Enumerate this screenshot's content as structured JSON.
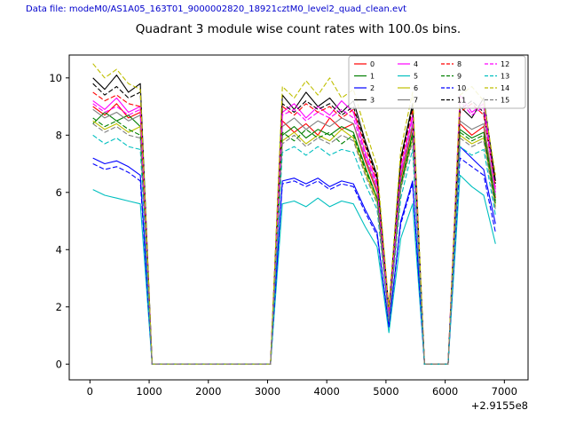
{
  "header": {
    "data_file_label": "Data file: modeM0/AS1A05_163T01_9000002820_18921cztM0_level2_quad_clean.evt",
    "color": "#0000cc"
  },
  "chart_data": {
    "type": "line",
    "title": "Quadrant 3 module wise count rates with 100.0s bins.",
    "xlabel": "",
    "ylabel": "",
    "x_offset_text": "+2.9155e8",
    "xlim": [
      -350,
      7400
    ],
    "ylim": [
      -0.55,
      10.8
    ],
    "xticks": [
      0,
      1000,
      2000,
      3000,
      4000,
      5000,
      6000,
      7000
    ],
    "yticks": [
      0,
      2,
      4,
      6,
      8,
      10
    ],
    "grid": false,
    "legend_position": "upper right",
    "legend_columns": 4,
    "x": [
      50,
      250,
      450,
      650,
      850,
      1050,
      1250,
      1450,
      1650,
      1850,
      2050,
      2250,
      2450,
      2650,
      2850,
      3050,
      3250,
      3450,
      3650,
      3850,
      4050,
      4250,
      4450,
      4650,
      4850,
      5050,
      5250,
      5450,
      5650,
      5850,
      6050,
      6250,
      6450,
      6650,
      6850
    ],
    "series": [
      {
        "name": "0",
        "color": "#ff0000",
        "dashed": false,
        "values": [
          9.0,
          8.7,
          9.1,
          8.6,
          8.8,
          0,
          0,
          0,
          0,
          0,
          0,
          0,
          0,
          0,
          0,
          0,
          8.5,
          8.1,
          8.4,
          8.0,
          8.6,
          8.2,
          8.4,
          7.1,
          6.0,
          1.7,
          6.5,
          8.3,
          0,
          0,
          0,
          8.4,
          8.0,
          8.3,
          5.8
        ]
      },
      {
        "name": "1",
        "color": "#007f00",
        "dashed": false,
        "values": [
          8.4,
          8.8,
          8.5,
          8.7,
          8.3,
          0,
          0,
          0,
          0,
          0,
          0,
          0,
          0,
          0,
          0,
          0,
          8.0,
          8.3,
          7.9,
          8.2,
          8.0,
          8.3,
          8.1,
          6.9,
          5.8,
          1.6,
          6.3,
          8.1,
          0,
          0,
          0,
          8.2,
          7.9,
          8.1,
          5.7
        ]
      },
      {
        "name": "2",
        "color": "#0000ff",
        "dashed": false,
        "values": [
          7.2,
          7.0,
          7.1,
          6.9,
          6.6,
          0,
          0,
          0,
          0,
          0,
          0,
          0,
          0,
          0,
          0,
          0,
          6.4,
          6.5,
          6.3,
          6.5,
          6.2,
          6.4,
          6.3,
          5.4,
          4.6,
          1.3,
          5.0,
          6.4,
          0,
          0,
          0,
          7.6,
          7.2,
          6.8,
          4.9
        ]
      },
      {
        "name": "3",
        "color": "#000000",
        "dashed": false,
        "values": [
          10.0,
          9.6,
          10.1,
          9.5,
          9.8,
          0,
          0,
          0,
          0,
          0,
          0,
          0,
          0,
          0,
          0,
          0,
          9.4,
          8.9,
          9.5,
          9.0,
          9.3,
          8.8,
          9.2,
          7.8,
          6.6,
          1.9,
          7.2,
          9.1,
          0,
          0,
          0,
          9.0,
          8.6,
          9.3,
          6.4
        ]
      },
      {
        "name": "4",
        "color": "#ff00ff",
        "dashed": false,
        "values": [
          9.2,
          8.9,
          9.3,
          8.8,
          9.0,
          0,
          0,
          0,
          0,
          0,
          0,
          0,
          0,
          0,
          0,
          0,
          8.8,
          9.1,
          8.6,
          9.0,
          8.7,
          9.2,
          8.8,
          7.4,
          6.3,
          1.8,
          6.8,
          8.7,
          0,
          0,
          0,
          9.4,
          8.8,
          9.1,
          6.1
        ]
      },
      {
        "name": "5",
        "color": "#00bfbf",
        "dashed": false,
        "values": [
          6.1,
          5.9,
          5.8,
          5.7,
          5.6,
          0,
          0,
          0,
          0,
          0,
          0,
          0,
          0,
          0,
          0,
          0,
          5.6,
          5.7,
          5.5,
          5.8,
          5.5,
          5.7,
          5.6,
          4.8,
          4.1,
          1.1,
          4.4,
          5.6,
          0,
          0,
          0,
          6.6,
          6.2,
          5.9,
          4.2
        ]
      },
      {
        "name": "6",
        "color": "#bfbf00",
        "dashed": false,
        "values": [
          8.5,
          8.2,
          8.4,
          8.1,
          8.3,
          0,
          0,
          0,
          0,
          0,
          0,
          0,
          0,
          0,
          0,
          0,
          7.8,
          8.1,
          7.7,
          8.0,
          7.8,
          8.2,
          7.9,
          6.7,
          5.7,
          1.6,
          6.2,
          7.9,
          0,
          0,
          0,
          8.0,
          7.7,
          7.9,
          5.5
        ]
      },
      {
        "name": "7",
        "color": "#7f7f7f",
        "dashed": false,
        "values": [
          8.9,
          8.6,
          8.8,
          8.5,
          8.7,
          0,
          0,
          0,
          0,
          0,
          0,
          0,
          0,
          0,
          0,
          0,
          8.3,
          8.6,
          8.2,
          8.5,
          8.3,
          8.6,
          8.4,
          7.2,
          6.1,
          1.7,
          6.6,
          8.4,
          0,
          0,
          0,
          8.5,
          8.2,
          8.4,
          5.9
        ]
      },
      {
        "name": "8",
        "color": "#ff0000",
        "dashed": true,
        "values": [
          9.5,
          9.2,
          9.4,
          9.1,
          9.0,
          0,
          0,
          0,
          0,
          0,
          0,
          0,
          0,
          0,
          0,
          0,
          9.0,
          8.7,
          9.1,
          8.8,
          9.0,
          8.6,
          8.9,
          7.6,
          6.4,
          1.8,
          7.0,
          8.9,
          0,
          0,
          0,
          8.8,
          9.1,
          8.7,
          6.2
        ]
      },
      {
        "name": "9",
        "color": "#007f00",
        "dashed": true,
        "values": [
          8.6,
          8.3,
          8.5,
          8.2,
          8.0,
          0,
          0,
          0,
          0,
          0,
          0,
          0,
          0,
          0,
          0,
          0,
          8.1,
          7.8,
          8.2,
          7.9,
          8.1,
          7.7,
          8.0,
          6.8,
          5.8,
          1.6,
          6.2,
          8.0,
          0,
          0,
          0,
          8.1,
          7.8,
          8.0,
          5.6
        ]
      },
      {
        "name": "10",
        "color": "#0000ff",
        "dashed": true,
        "values": [
          7.0,
          6.8,
          6.9,
          6.7,
          6.4,
          0,
          0,
          0,
          0,
          0,
          0,
          0,
          0,
          0,
          0,
          0,
          6.3,
          6.4,
          6.2,
          6.4,
          6.1,
          6.3,
          6.2,
          5.3,
          4.5,
          1.3,
          4.9,
          6.3,
          0,
          0,
          0,
          7.2,
          6.9,
          6.6,
          4.6
        ]
      },
      {
        "name": "11",
        "color": "#000000",
        "dashed": true,
        "values": [
          9.8,
          9.4,
          9.7,
          9.3,
          9.5,
          0,
          0,
          0,
          0,
          0,
          0,
          0,
          0,
          0,
          0,
          0,
          9.1,
          8.8,
          9.2,
          8.9,
          9.1,
          8.7,
          9.0,
          7.7,
          6.5,
          1.9,
          7.1,
          9.0,
          0,
          0,
          0,
          8.9,
          9.2,
          8.8,
          6.3
        ]
      },
      {
        "name": "12",
        "color": "#ff00ff",
        "dashed": true,
        "values": [
          9.1,
          8.8,
          9.0,
          8.7,
          8.9,
          0,
          0,
          0,
          0,
          0,
          0,
          0,
          0,
          0,
          0,
          0,
          8.7,
          8.9,
          8.5,
          8.8,
          8.6,
          8.9,
          8.6,
          7.3,
          6.2,
          1.7,
          6.7,
          8.6,
          0,
          0,
          0,
          9.2,
          8.7,
          9.0,
          6.0
        ]
      },
      {
        "name": "13",
        "color": "#00bfbf",
        "dashed": true,
        "values": [
          8.0,
          7.7,
          7.9,
          7.6,
          7.5,
          0,
          0,
          0,
          0,
          0,
          0,
          0,
          0,
          0,
          0,
          0,
          7.4,
          7.6,
          7.3,
          7.6,
          7.3,
          7.5,
          7.4,
          6.3,
          5.4,
          1.5,
          5.8,
          7.5,
          0,
          0,
          0,
          7.6,
          7.3,
          7.5,
          5.2
        ]
      },
      {
        "name": "14",
        "color": "#bfbf00",
        "dashed": true,
        "values": [
          10.5,
          10.0,
          10.3,
          9.8,
          9.6,
          0,
          0,
          0,
          0,
          0,
          0,
          0,
          0,
          0,
          0,
          0,
          9.7,
          9.3,
          9.9,
          9.4,
          10.0,
          9.3,
          9.6,
          8.2,
          6.9,
          2.0,
          7.5,
          9.5,
          0,
          0,
          0,
          9.4,
          9.7,
          9.2,
          6.6
        ]
      },
      {
        "name": "15",
        "color": "#7f7f7f",
        "dashed": true,
        "values": [
          8.4,
          8.1,
          8.3,
          8.0,
          7.9,
          0,
          0,
          0,
          0,
          0,
          0,
          0,
          0,
          0,
          0,
          0,
          7.7,
          8.0,
          7.6,
          7.9,
          7.7,
          8.0,
          7.8,
          6.6,
          5.6,
          1.5,
          6.1,
          7.8,
          0,
          0,
          0,
          7.9,
          7.6,
          7.8,
          5.4
        ]
      }
    ]
  }
}
